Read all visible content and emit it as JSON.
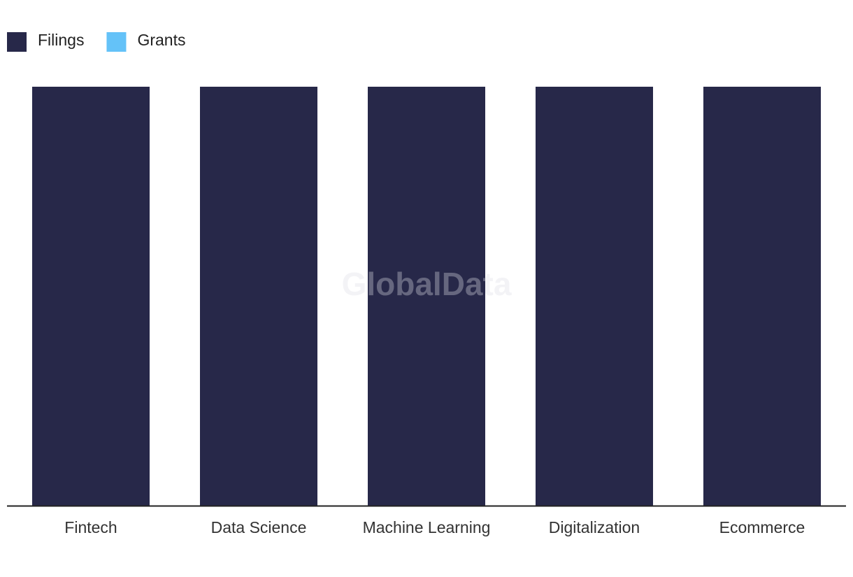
{
  "chart_data": {
    "type": "bar",
    "stacked": true,
    "categories": [
      "Fintech",
      "Data Science",
      "Machine Learning",
      "Digitalization",
      "Ecommerce"
    ],
    "series": [
      {
        "name": "Filings",
        "color": "#272849",
        "values": [
          100,
          100,
          100,
          100,
          100
        ]
      },
      {
        "name": "Grants",
        "color": "#64c2f8",
        "values": [
          0,
          0,
          0,
          0,
          0
        ]
      }
    ],
    "ylim": [
      0,
      100
    ],
    "legend": "top-left",
    "watermark": "GlobalData"
  }
}
